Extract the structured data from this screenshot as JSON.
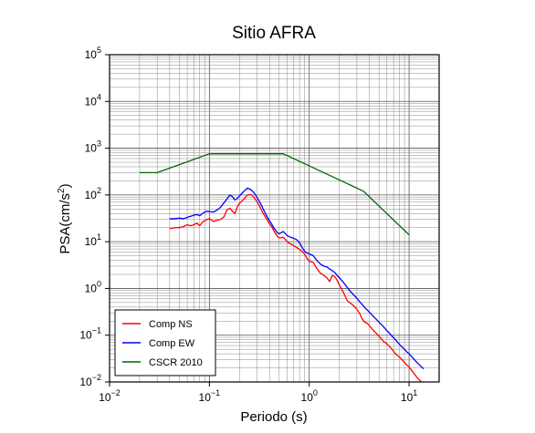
{
  "chart_data": {
    "type": "line",
    "title": "Sitio AFRA",
    "xlabel": "Periodo (s)",
    "ylabel_prefix": "PSA(cm/s",
    "ylabel_sup": "2",
    "ylabel_suffix": ")",
    "x_scale": "log",
    "y_scale": "log",
    "xlim": [
      0.01,
      20
    ],
    "ylim": [
      0.01,
      100000
    ],
    "grid": true,
    "legend_position": "bottom-left",
    "x_ticks": [
      {
        "value": 0.01,
        "base": "10",
        "exp": "−2"
      },
      {
        "value": 0.1,
        "base": "10",
        "exp": "−1"
      },
      {
        "value": 1,
        "base": "10",
        "exp": "0"
      },
      {
        "value": 10,
        "base": "10",
        "exp": "1"
      }
    ],
    "y_ticks": [
      {
        "value": 0.01,
        "base": "10",
        "exp": "−2"
      },
      {
        "value": 0.1,
        "base": "10",
        "exp": "−1"
      },
      {
        "value": 1,
        "base": "10",
        "exp": "0"
      },
      {
        "value": 10,
        "base": "10",
        "exp": "1"
      },
      {
        "value": 100,
        "base": "10",
        "exp": "2"
      },
      {
        "value": 1000,
        "base": "10",
        "exp": "3"
      },
      {
        "value": 10000,
        "base": "10",
        "exp": "4"
      },
      {
        "value": 100000,
        "base": "10",
        "exp": "5"
      }
    ],
    "series": [
      {
        "name": "Comp NS",
        "color": "#ff0000",
        "x": [
          0.04,
          0.045,
          0.05,
          0.055,
          0.06,
          0.065,
          0.07,
          0.075,
          0.08,
          0.085,
          0.09,
          0.095,
          0.1,
          0.11,
          0.12,
          0.13,
          0.14,
          0.15,
          0.16,
          0.17,
          0.18,
          0.19,
          0.2,
          0.22,
          0.24,
          0.26,
          0.28,
          0.3,
          0.32,
          0.34,
          0.36,
          0.38,
          0.4,
          0.42,
          0.44,
          0.46,
          0.48,
          0.5,
          0.55,
          0.6,
          0.65,
          0.7,
          0.75,
          0.8,
          0.85,
          0.9,
          0.95,
          1.0,
          1.1,
          1.2,
          1.3,
          1.4,
          1.5,
          1.6,
          1.7,
          1.8,
          1.9,
          2.0,
          2.2,
          2.4,
          2.6,
          2.8,
          3.0,
          3.2,
          3.4,
          3.6,
          3.8,
          4.0,
          4.5,
          5.0,
          5.5,
          6.0,
          6.5,
          7.0,
          7.5,
          8.0,
          8.5,
          9.0,
          9.5,
          10,
          11,
          12,
          13,
          14
        ],
        "y": [
          19,
          20,
          20,
          21,
          23,
          22,
          23,
          25,
          22,
          26,
          28,
          30,
          31,
          27,
          29,
          30,
          34,
          48,
          52,
          45,
          40,
          55,
          66,
          80,
          100,
          102,
          88,
          72,
          56,
          43,
          35,
          29,
          24,
          21,
          17.5,
          14.8,
          13.0,
          12.0,
          12.5,
          10.0,
          9.0,
          8.2,
          7.5,
          6.8,
          6.2,
          5.4,
          4.4,
          3.8,
          3.6,
          2.6,
          2.1,
          1.9,
          1.7,
          1.4,
          1.9,
          1.8,
          1.5,
          1.2,
          0.82,
          0.55,
          0.48,
          0.42,
          0.36,
          0.29,
          0.22,
          0.19,
          0.18,
          0.16,
          0.12,
          0.095,
          0.075,
          0.065,
          0.055,
          0.045,
          0.038,
          0.034,
          0.03,
          0.026,
          0.023,
          0.021,
          0.016,
          0.0125,
          0.0105,
          0.009
        ]
      },
      {
        "name": "Comp EW",
        "color": "#0000ff",
        "x": [
          0.04,
          0.045,
          0.05,
          0.055,
          0.06,
          0.065,
          0.07,
          0.075,
          0.08,
          0.085,
          0.09,
          0.095,
          0.1,
          0.11,
          0.12,
          0.13,
          0.14,
          0.15,
          0.16,
          0.17,
          0.18,
          0.19,
          0.2,
          0.22,
          0.24,
          0.26,
          0.28,
          0.3,
          0.32,
          0.34,
          0.36,
          0.38,
          0.4,
          0.42,
          0.44,
          0.46,
          0.48,
          0.5,
          0.55,
          0.6,
          0.65,
          0.7,
          0.75,
          0.8,
          0.85,
          0.9,
          0.95,
          1.0,
          1.1,
          1.2,
          1.3,
          1.4,
          1.5,
          1.6,
          1.7,
          1.8,
          1.9,
          2.0,
          2.2,
          2.4,
          2.6,
          2.8,
          3.0,
          3.2,
          3.4,
          3.6,
          3.8,
          4.0,
          4.5,
          5.0,
          5.5,
          6.0,
          6.5,
          7.0,
          7.5,
          8.0,
          8.5,
          9.0,
          9.5,
          10,
          11,
          12,
          13,
          14
        ],
        "y": [
          31,
          31,
          32,
          31,
          33,
          35,
          37,
          38,
          36,
          40,
          43,
          45,
          44,
          43,
          48,
          55,
          68,
          82,
          100,
          92,
          78,
          84,
          95,
          118,
          140,
          130,
          112,
          88,
          70,
          54,
          42,
          34,
          28,
          24,
          20,
          17.5,
          15.5,
          14.8,
          16.5,
          13.5,
          12.5,
          11.8,
          11.0,
          9.5,
          7.5,
          6.2,
          5.7,
          5.5,
          5.0,
          3.9,
          3.3,
          3.0,
          2.9,
          2.6,
          2.4,
          2.2,
          1.9,
          1.7,
          1.35,
          1.05,
          0.85,
          0.72,
          0.62,
          0.52,
          0.45,
          0.39,
          0.35,
          0.31,
          0.24,
          0.19,
          0.155,
          0.125,
          0.105,
          0.088,
          0.075,
          0.064,
          0.056,
          0.05,
          0.044,
          0.04,
          0.032,
          0.026,
          0.022,
          0.019
        ]
      },
      {
        "name": "CSCR 2010",
        "color": "#006400",
        "x": [
          0.02,
          0.03,
          0.1,
          0.55,
          3.5,
          10
        ],
        "y": [
          300,
          300,
          760,
          760,
          120,
          14
        ]
      }
    ]
  }
}
